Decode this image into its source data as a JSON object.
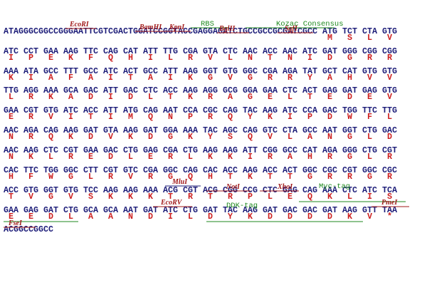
{
  "sequence_lines": [
    {
      "dna": "ATAGGGCGGCCGGGAATTCGTCGACTGGATCCGGTACCGAGGAGATCTGCCGCCGCGATCGCC ATG TCT CTA GTG",
      "protein": [
        "M",
        "S",
        "L",
        "V"
      ],
      "annotations": [
        {
          "label": "EcoRI",
          "color": "#a01818"
        },
        {
          "label": "BamHI",
          "color": "#a01818"
        },
        {
          "label": "KpnI",
          "color": "#a01818"
        },
        {
          "label": "RBS",
          "color": "#1f8a1f"
        },
        {
          "label": "BglII",
          "color": "#a01818"
        },
        {
          "label": "Kozac Consensus",
          "color": "#1f8a1f"
        },
        {
          "label": "SgfI",
          "color": "#a01818"
        }
      ]
    },
    {
      "dna": "ATC CCT GAA AAG TTC CAG CAT ATT TTG CGA GTA CTC AAC ACC AAC ATC GAT GGG CGG CGG",
      "protein": [
        "I",
        "P",
        "E",
        "K",
        "F",
        "Q",
        "H",
        "I",
        "L",
        "R",
        "V",
        "L",
        "N",
        "T",
        "N",
        "I",
        "D",
        "G",
        "R",
        "R"
      ],
      "annotations": []
    },
    {
      "dna": "AAA ATA GCC TTT GCC ATC ACT GCC ATT AAG GGT GTG GGC CGA AGA TAT GCT CAT GTG GTG",
      "protein": [
        "K",
        "I",
        "A",
        "F",
        "A",
        "I",
        "T",
        "A",
        "I",
        "K",
        "G",
        "V",
        "G",
        "R",
        "R",
        "Y",
        "A",
        "H",
        "V",
        "V"
      ],
      "annotations": []
    },
    {
      "dna": "TTG AGG AAA GCA GAC ATT GAC CTC ACC AAG AGG GCG GGA GAA CTC ACT GAG GAT GAG GTG",
      "protein": [
        "L",
        "R",
        "K",
        "A",
        "D",
        "I",
        "D",
        "L",
        "T",
        "K",
        "R",
        "A",
        "G",
        "E",
        "L",
        "T",
        "E",
        "D",
        "E",
        "V"
      ],
      "annotations": []
    },
    {
      "dna": "GAA CGT GTG ATC ACC ATT ATG CAG AAT CCA CGC CAG TAC AAG ATC CCA GAC TGG TTC TTG",
      "protein": [
        "E",
        "R",
        "V",
        "I",
        "T",
        "I",
        "M",
        "Q",
        "N",
        "P",
        "R",
        "Q",
        "Y",
        "K",
        "I",
        "P",
        "D",
        "W",
        "F",
        "L"
      ],
      "annotations": []
    },
    {
      "dna": "AAC AGA CAG AAG GAT GTA AAG GAT GGA AAA TAC AGC CAG GTC CTA GCC AAT GGT CTG GAC",
      "protein": [
        "N",
        "R",
        "Q",
        "K",
        "D",
        "V",
        "K",
        "D",
        "G",
        "K",
        "Y",
        "S",
        "Q",
        "V",
        "L",
        "A",
        "N",
        "G",
        "L",
        "D"
      ],
      "annotations": []
    },
    {
      "dna": "AAC AAG CTC CGT GAA GAC CTG GAG CGA CTG AAG AAG ATT CGG GCC CAT AGA GGG CTG CGT",
      "protein": [
        "N",
        "K",
        "L",
        "R",
        "E",
        "D",
        "L",
        "E",
        "R",
        "L",
        "K",
        "K",
        "I",
        "R",
        "A",
        "H",
        "R",
        "G",
        "L",
        "R"
      ],
      "annotations": []
    },
    {
      "dna": "CAC TTC TGG GGC CTT CGT GTC CGA GGC CAG CAC ACC AAG ACC ACT GGC CGC CGT GGC CGC",
      "protein": [
        "H",
        "F",
        "W",
        "G",
        "L",
        "R",
        "V",
        "R",
        "G",
        "Q",
        "H",
        "T",
        "K",
        "T",
        "T",
        "G",
        "R",
        "R",
        "G",
        "R"
      ],
      "annotations": []
    },
    {
      "dna": "ACC GTG GGT GTG TCC AAG AAG AAA ACG CGT ACG CGG CCG CTC GAG CAG AAA CTC ATC TCA",
      "protein": [
        "T",
        "V",
        "G",
        "V",
        "S",
        "K",
        "K",
        "K",
        "T",
        "R",
        "T",
        "R",
        "P",
        "L",
        "E",
        "Q",
        "K",
        "L",
        "I",
        "S"
      ],
      "annotations": [
        {
          "label": "MluI",
          "color": "#a01818"
        },
        {
          "label": "NotI",
          "color": "#a01818"
        },
        {
          "label": "XhoI",
          "color": "#a01818"
        },
        {
          "label": "Myc-tag",
          "color": "#1f8a1f"
        }
      ]
    },
    {
      "dna": "GAA GAG GAT CTG GCA GCA AAT GAT ATC CTG GAT TAC AAG GAT GAC GAC GAT AAG GTT TAA",
      "protein": [
        "E",
        "E",
        "D",
        "L",
        "A",
        "A",
        "N",
        "D",
        "I",
        "L",
        "D",
        "Y",
        "K",
        "D",
        "D",
        "D",
        "D",
        "K",
        "V",
        "*"
      ],
      "annotations": [
        {
          "label": "EcoRV",
          "color": "#a01818"
        },
        {
          "label": "DDK-tag",
          "color": "#1f8a1f"
        },
        {
          "label": "PmeI",
          "color": "#a01818"
        }
      ]
    },
    {
      "dna": "ACGGCCGGCC",
      "protein": [],
      "annotations": [
        {
          "label": "FseI",
          "color": "#a01818"
        }
      ]
    }
  ]
}
